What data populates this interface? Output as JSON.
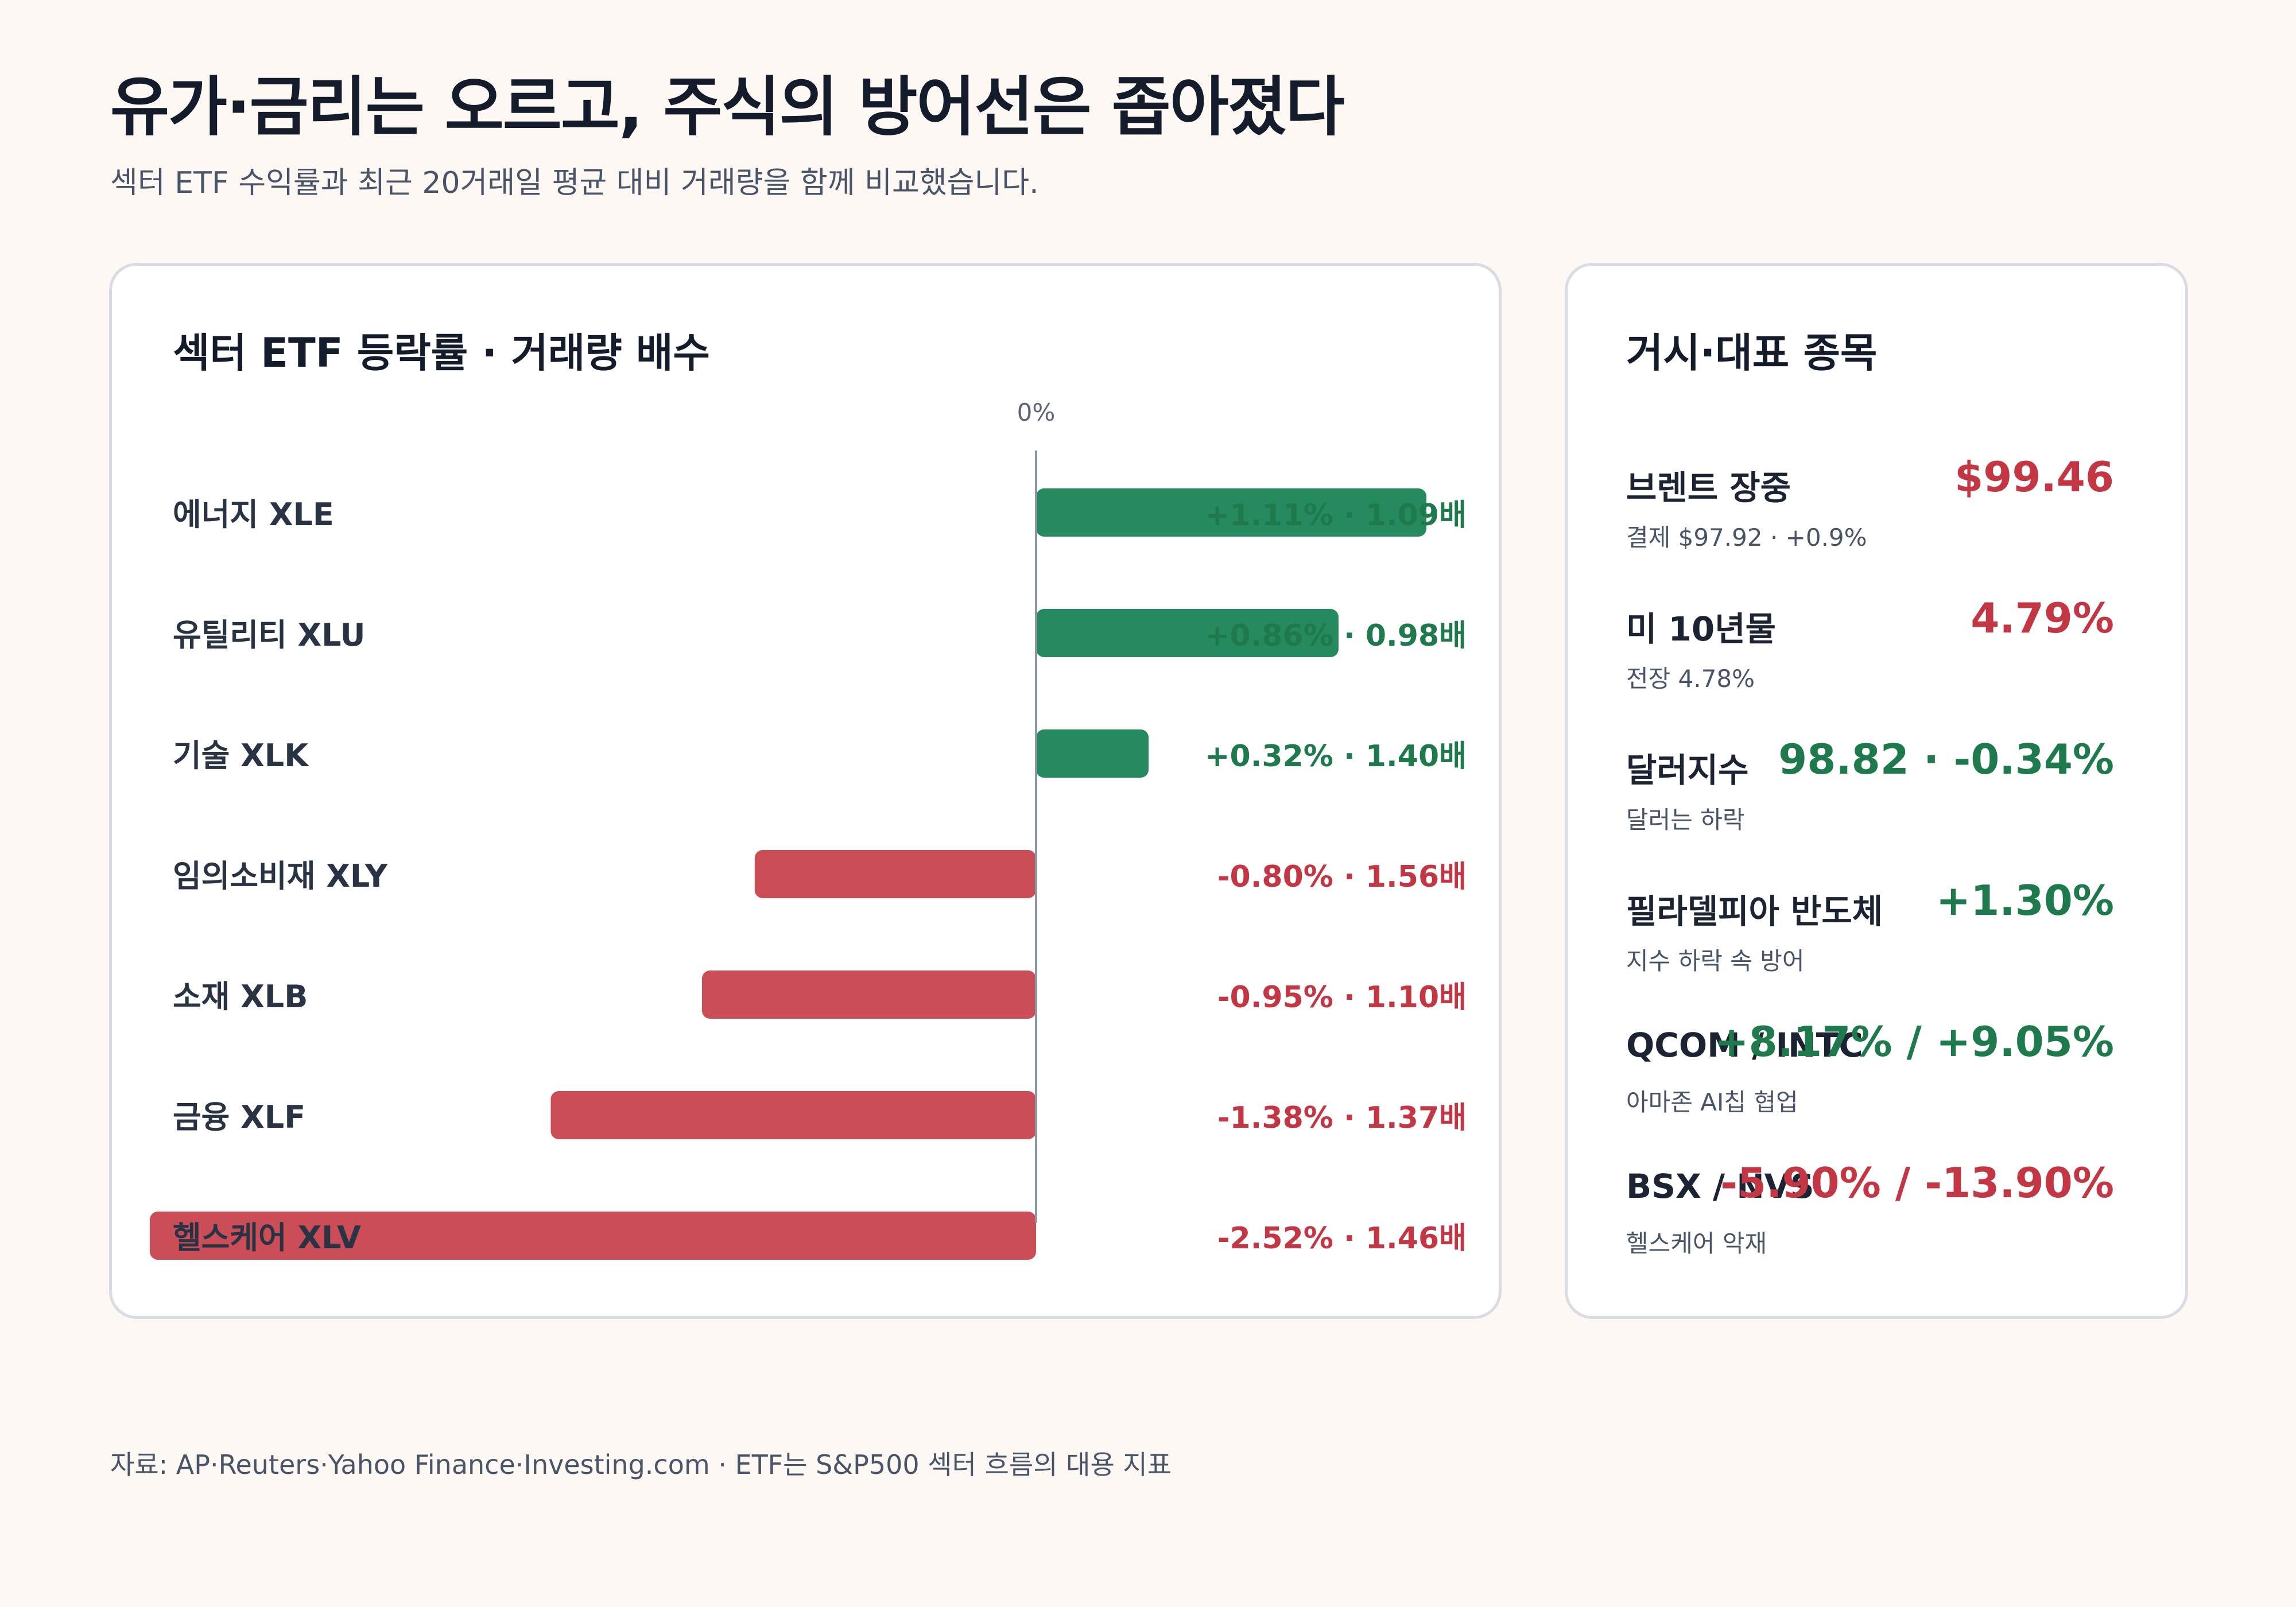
{
  "title": "유가·금리는 오르고, 주식의 방어선은 좁아졌다",
  "subtitle": "섹터 ETF 수익률과 최근 20거래일 평균 대비 거래량을 함께 비교했습니다.",
  "chart_card": {
    "title": "섹터 ETF 등락률 · 거래량 배수"
  },
  "chart_data": {
    "type": "bar",
    "orientation": "horizontal",
    "title": "섹터 ETF 등락률 · 거래량 배수",
    "zero_label": "0%",
    "categories": [
      "에너지 XLE",
      "유틸리티 XLU",
      "기술 XLK",
      "임의소비재 XLY",
      "소재 XLB",
      "금융 XLF",
      "헬스케어 XLV"
    ],
    "values": [
      1.11,
      0.86,
      0.32,
      -0.8,
      -0.95,
      -1.38,
      -2.52
    ],
    "volume_multiples": [
      1.09,
      0.98,
      1.4,
      1.56,
      1.1,
      1.37,
      1.46
    ],
    "labels": [
      "+1.11% · 1.09배",
      "+0.86% · 0.98배",
      "+0.32% · 1.40배",
      "-0.80% · 1.56배",
      "-0.95% · 1.10배",
      "-1.38% · 1.37배",
      "-2.52% · 1.46배"
    ],
    "xlim": [
      -2.52,
      1.11
    ],
    "grid": false,
    "colors": {
      "positive": "#258a5e",
      "negative": "#cb4d58",
      "positive_text": "#1e7a4c",
      "negative_text": "#c33644",
      "axis": "#8c95a3"
    }
  },
  "side_card": {
    "title": "거시·대표 종목",
    "items": [
      {
        "name": "브렌트 장중",
        "value": "$99.46",
        "note": "결제 $97.92 · +0.9%",
        "color": "#c33644"
      },
      {
        "name": "미 10년물",
        "value": "4.79%",
        "note": "전장 4.78%",
        "color": "#c33644"
      },
      {
        "name": "달러지수",
        "value": "98.82 · -0.34%",
        "note": "달러는 하락",
        "color": "#1e7a4c"
      },
      {
        "name": "필라델피아 반도체",
        "value": "+1.30%",
        "note": "지수 하락 속 방어",
        "color": "#1e7a4c"
      },
      {
        "name": "QCOM / INTC",
        "value": "+8.17% / +9.05%",
        "note": "아마존 AI칩 협업",
        "color": "#1e7a4c"
      },
      {
        "name": "BSX / NVS",
        "value": "-5.90% / -13.90%",
        "note": "헬스케어 악재",
        "color": "#c33644"
      }
    ]
  },
  "footer": "자료: AP·Reuters·Yahoo Finance·Investing.com · ETF는 S&P500 섹터 흐름의 대용 지표"
}
